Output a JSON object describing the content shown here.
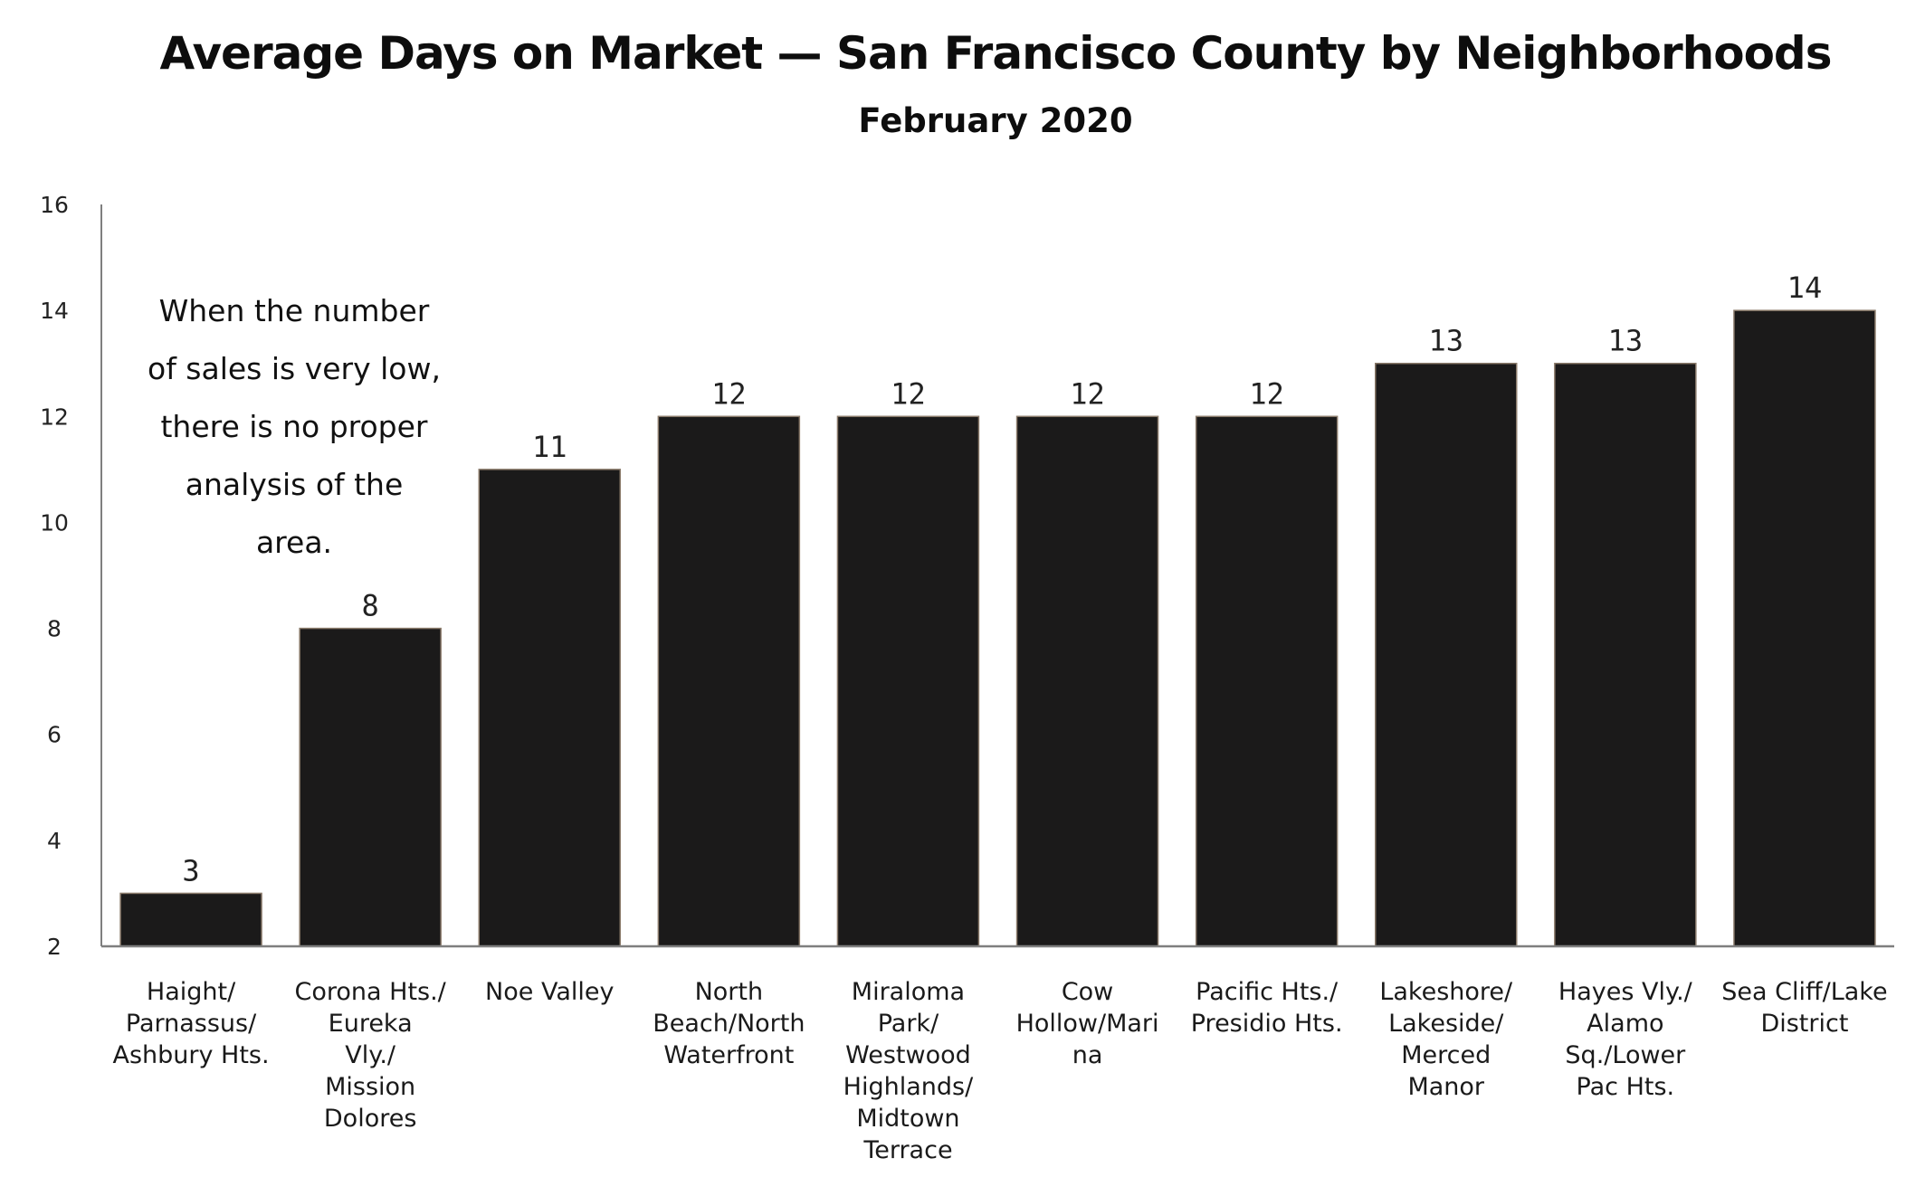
{
  "chart_data": {
    "type": "bar",
    "title": "Average Days on Market — San Francisco County by Neighborhoods",
    "subtitle": "February 2020",
    "xlabel": "",
    "ylabel": "",
    "ylim": [
      2,
      16
    ],
    "yticks": [
      2,
      4,
      6,
      8,
      10,
      12,
      14,
      16
    ],
    "grid": false,
    "legend": "none",
    "bar_color": "#1b1a1a",
    "bar_edge_color": "#8a7a6a",
    "categories": [
      "Haight/ Parnassus/ Ashbury Hts.",
      "Corona Hts./ Eureka Vly./ Mission Dolores",
      "Noe Valley",
      "North Beach/North Waterfront",
      "Miraloma Park/ Westwood Highlands/ Midtown Terrace",
      "Cow Hollow/Marina",
      "Pacific Hts./ Presidio Hts.",
      "Lakeshore/ Lakeside/ Merced Manor",
      "Hayes Vly./ Alamo Sq./Lower Pac Hts.",
      "Sea Cliff/Lake District"
    ],
    "category_lines": [
      [
        "Haight/",
        "Parnassus/",
        "Ashbury Hts."
      ],
      [
        "Corona Hts./",
        "Eureka",
        "Vly./",
        "Mission",
        "Dolores"
      ],
      [
        "Noe Valley"
      ],
      [
        "North",
        "Beach/North",
        "Waterfront"
      ],
      [
        "Miraloma",
        "Park/",
        "Westwood",
        "Highlands/",
        "Midtown",
        "Terrace"
      ],
      [
        "Cow",
        "Hollow/Mari",
        "na"
      ],
      [
        "Pacific Hts./",
        "Presidio Hts."
      ],
      [
        "Lakeshore/",
        "Lakeside/",
        "Merced",
        "Manor"
      ],
      [
        "Hayes Vly./",
        "Alamo",
        "Sq./Lower",
        "Pac Hts."
      ],
      [
        "Sea Cliff/Lake",
        "District"
      ]
    ],
    "values": [
      3,
      8,
      11,
      12,
      12,
      12,
      12,
      13,
      13,
      14
    ],
    "data_labels": [
      "3",
      "8",
      "11",
      "12",
      "12",
      "12",
      "12",
      "13",
      "13",
      "14"
    ],
    "annotation": {
      "lines": [
        "When the number",
        "of sales is very low,",
        "there is no proper",
        "analysis of the",
        "area."
      ]
    }
  }
}
